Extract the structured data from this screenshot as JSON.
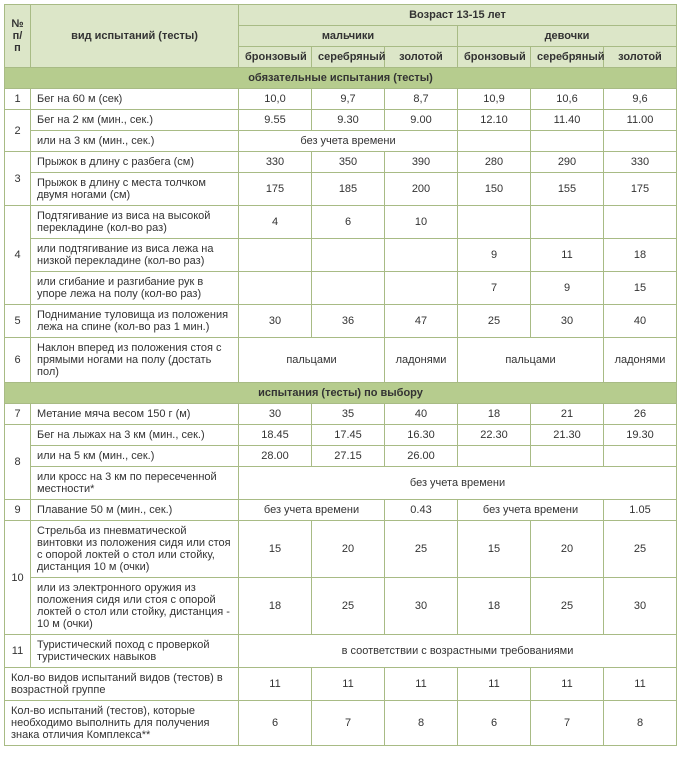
{
  "header": {
    "num": "№ п/п",
    "test_type": "вид испытаний (тесты)",
    "age_group": "Возраст 13-15 лет",
    "boys": "мальчики",
    "girls": "девочки",
    "bronze": "бронзовый",
    "silver": "серебряный",
    "gold": "золотой"
  },
  "sections": {
    "mandatory": "обязательные испытания (тесты)",
    "optional": "испытания (тесты) по выбору"
  },
  "rows": {
    "r1": {
      "n": "1",
      "name": "Бег на 60 м (сек)",
      "b1": "10,0",
      "b2": "9,7",
      "b3": "8,7",
      "g1": "10,9",
      "g2": "10,6",
      "g3": "9,6"
    },
    "r2a": {
      "n": "2",
      "name": "Бег на 2 км (мин., сек.)",
      "b1": "9.55",
      "b2": "9.30",
      "b3": "9.00",
      "g1": "12.10",
      "g2": "11.40",
      "g3": "11.00"
    },
    "r2b": {
      "name": "или на 3 км (мин., сек.)",
      "merged_b": "без учета времени"
    },
    "r3a": {
      "n": "3",
      "name": "Прыжок в длину с разбега (см)",
      "b1": "330",
      "b2": "350",
      "b3": "390",
      "g1": "280",
      "g2": "290",
      "g3": "330"
    },
    "r3b": {
      "name": "Прыжок в длину с места толчком двумя ногами (см)",
      "b1": "175",
      "b2": "185",
      "b3": "200",
      "g1": "150",
      "g2": "155",
      "g3": "175"
    },
    "r4a": {
      "n": "4",
      "name": "Подтягивание из виса на высокой перекладине (кол-во раз)",
      "b1": "4",
      "b2": "6",
      "b3": "10"
    },
    "r4b": {
      "name": "или подтягивание из виса лежа на низкой перекладине (кол-во раз)",
      "g1": "9",
      "g2": "11",
      "g3": "18"
    },
    "r4c": {
      "name": "или сгибание и разгибание рук в упоре лежа на полу (кол-во раз)",
      "g1": "7",
      "g2": "9",
      "g3": "15"
    },
    "r5": {
      "n": "5",
      "name": "Поднимание туловища из положения лежа на спине (кол-во раз 1 мин.)",
      "b1": "30",
      "b2": "36",
      "b3": "47",
      "g1": "25",
      "g2": "30",
      "g3": "40"
    },
    "r6": {
      "n": "6",
      "name": "Наклон вперед из положения стоя с прямыми ногами на полу (достать пол)",
      "b12": "пальцами",
      "b3": "ладонями",
      "g12": "пальцами",
      "g3": "ладонями"
    },
    "r7": {
      "n": "7",
      "name": "Метание мяча весом 150 г (м)",
      "b1": "30",
      "b2": "35",
      "b3": "40",
      "g1": "18",
      "g2": "21",
      "g3": "26"
    },
    "r8a": {
      "n": "8",
      "name": "Бег на лыжах на 3 км (мин., сек.)",
      "b1": "18.45",
      "b2": "17.45",
      "b3": "16.30",
      "g1": "22.30",
      "g2": "21.30",
      "g3": "19.30"
    },
    "r8b": {
      "name": "или на 5 км (мин., сек.)",
      "b1": "28.00",
      "b2": "27.15",
      "b3": "26.00"
    },
    "r8c": {
      "name": "или кросс на 3 км по пересеченной местности*",
      "merged": "без учета времени"
    },
    "r9": {
      "n": "9",
      "name": "Плавание 50 м (мин., сек.)",
      "b12": "без учета времени",
      "b3": "0.43",
      "g12": "без учета времени",
      "g3": "1.05"
    },
    "r10a": {
      "n": "10",
      "name": "Стрельба из пневматической винтовки из положения сидя или стоя с опорой локтей о стол или стойку, дистанция 10 м (очки)",
      "b1": "15",
      "b2": "20",
      "b3": "25",
      "g1": "15",
      "g2": "20",
      "g3": "25"
    },
    "r10b": {
      "name": "или из электронного оружия из положения сидя или стоя с опорой локтей о стол или стойку, дистанция - 10 м (очки)",
      "b1": "18",
      "b2": "25",
      "b3": "30",
      "g1": "18",
      "g2": "25",
      "g3": "30"
    },
    "r11": {
      "n": "11",
      "name": "Туристический поход с проверкой туристических навыков",
      "merged": "в соответствии с возрастными требованиями"
    },
    "rcount": {
      "name": "Кол-во видов испытаний видов (тестов) в возрастной группе",
      "b1": "11",
      "b2": "11",
      "b3": "11",
      "g1": "11",
      "g2": "11",
      "g3": "11"
    },
    "rreq": {
      "name": "Кол-во испытаний (тестов), которые необходимо выполнить для получения знака отличия Комплекса**",
      "b1": "6",
      "b2": "7",
      "b3": "8",
      "g1": "6",
      "g2": "7",
      "g3": "8"
    }
  },
  "style": {
    "header_bg": "#dce6c8",
    "section_bg": "#b6cc8e",
    "border_color": "#a8bb85",
    "font_size": 11
  }
}
